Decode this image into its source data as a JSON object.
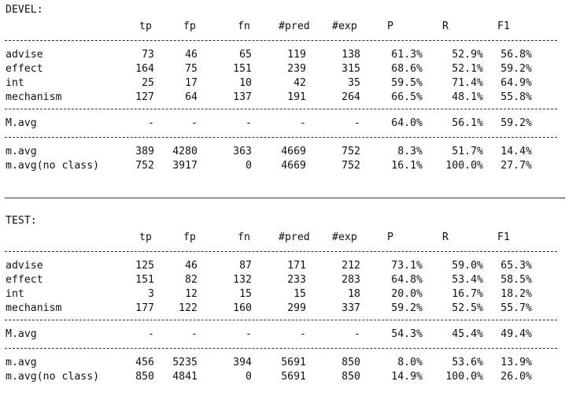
{
  "sections": [
    {
      "title": "DEVEL:",
      "headers": [
        "tp",
        "fp",
        "fn",
        "#pred",
        "#exp",
        "P",
        "R",
        "F1"
      ],
      "rows": [
        {
          "label": "advise",
          "v": [
            "73",
            "46",
            "65",
            "119",
            "138",
            "61.3%",
            "52.9%",
            "56.8%"
          ]
        },
        {
          "label": "effect",
          "v": [
            "164",
            "75",
            "151",
            "239",
            "315",
            "68.6%",
            "52.1%",
            "59.2%"
          ]
        },
        {
          "label": "int",
          "v": [
            "25",
            "17",
            "10",
            "42",
            "35",
            "59.5%",
            "71.4%",
            "64.9%"
          ]
        },
        {
          "label": "mechanism",
          "v": [
            "127",
            "64",
            "137",
            "191",
            "264",
            "66.5%",
            "48.1%",
            "55.8%"
          ]
        }
      ],
      "macro": {
        "label": "M.avg",
        "v": [
          "-",
          "-",
          "-",
          "-",
          "-",
          "64.0%",
          "56.1%",
          "59.2%"
        ]
      },
      "micro": [
        {
          "label": "m.avg",
          "v": [
            "389",
            "4280",
            "363",
            "4669",
            "752",
            "8.3%",
            "51.7%",
            "14.4%"
          ]
        },
        {
          "label": "m.avg(no class)",
          "v": [
            "752",
            "3917",
            "0",
            "4669",
            "752",
            "16.1%",
            "100.0%",
            "27.7%"
          ]
        }
      ]
    },
    {
      "title": "TEST:",
      "headers": [
        "tp",
        "fp",
        "fn",
        "#pred",
        "#exp",
        "P",
        "R",
        "F1"
      ],
      "rows": [
        {
          "label": "advise",
          "v": [
            "125",
            "46",
            "87",
            "171",
            "212",
            "73.1%",
            "59.0%",
            "65.3%"
          ]
        },
        {
          "label": "effect",
          "v": [
            "151",
            "82",
            "132",
            "233",
            "283",
            "64.8%",
            "53.4%",
            "58.5%"
          ]
        },
        {
          "label": "int",
          "v": [
            "3",
            "12",
            "15",
            "15",
            "18",
            "20.0%",
            "16.7%",
            "18.2%"
          ]
        },
        {
          "label": "mechanism",
          "v": [
            "177",
            "122",
            "160",
            "299",
            "337",
            "59.2%",
            "52.5%",
            "55.7%"
          ]
        }
      ],
      "macro": {
        "label": "M.avg",
        "v": [
          "-",
          "-",
          "-",
          "-",
          "-",
          "54.3%",
          "45.4%",
          "49.4%"
        ]
      },
      "micro": [
        {
          "label": "m.avg",
          "v": [
            "456",
            "5235",
            "394",
            "5691",
            "850",
            "8.0%",
            "53.6%",
            "13.9%"
          ]
        },
        {
          "label": "m.avg(no class)",
          "v": [
            "850",
            "4841",
            "0",
            "5691",
            "850",
            "14.9%",
            "100.0%",
            "26.0%"
          ]
        }
      ]
    }
  ]
}
